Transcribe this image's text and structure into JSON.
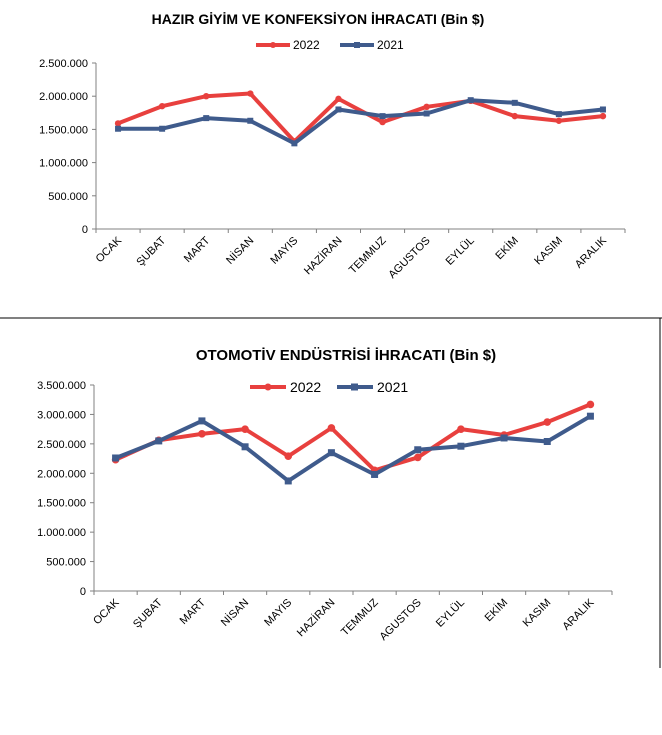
{
  "colors": {
    "series2022": "#e8403e",
    "series2021": "#3f5b8c",
    "axis": "#808080",
    "frame": "#000000"
  },
  "chart_data": [
    {
      "type": "line",
      "title": "HAZIR GİYİM VE KONFEKSİYON İHRACATI (Bin $)",
      "categories": [
        "OCAK",
        "ŞUBAT",
        "MART",
        "NİSAN",
        "MAYIS",
        "HAZİRAN",
        "TEMMUZ",
        "AGUSTOS",
        "EYLÜL",
        "EKİM",
        "KASIM",
        "ARALIK"
      ],
      "series": [
        {
          "name": "2022",
          "values": [
            1590000,
            1850000,
            2000000,
            2040000,
            1320000,
            1960000,
            1610000,
            1840000,
            1930000,
            1700000,
            1630000,
            1700000
          ]
        },
        {
          "name": "2021",
          "values": [
            1510000,
            1510000,
            1670000,
            1630000,
            1290000,
            1800000,
            1700000,
            1740000,
            1940000,
            1900000,
            1730000,
            1800000
          ]
        }
      ],
      "ylim": [
        0,
        2500000
      ],
      "yticks": [
        0,
        500000,
        1000000,
        1500000,
        2000000,
        2500000
      ],
      "ytick_labels": [
        "0",
        "500.000",
        "1.000.000",
        "1.500.000",
        "2.000.000",
        "2.500.000"
      ],
      "xlabel": "",
      "ylabel": "",
      "grid": false,
      "legend": "top-center"
    },
    {
      "type": "line",
      "title": "OTOMOTİV ENDÜSTRİSİ İHRACATI (Bin $)",
      "categories": [
        "OCAK",
        "ŞUBAT",
        "MART",
        "NİSAN",
        "MAYIS",
        "HAZİRAN",
        "TEMMUZ",
        "AGUSTOS",
        "EYLÜL",
        "EKİM",
        "KASIM",
        "ARALIK"
      ],
      "series": [
        {
          "name": "2022",
          "values": [
            2230000,
            2560000,
            2670000,
            2750000,
            2290000,
            2770000,
            2050000,
            2270000,
            2750000,
            2650000,
            2870000,
            3170000
          ]
        },
        {
          "name": "2021",
          "values": [
            2260000,
            2550000,
            2890000,
            2450000,
            1870000,
            2350000,
            1980000,
            2400000,
            2460000,
            2600000,
            2540000,
            2970000
          ]
        }
      ],
      "ylim": [
        0,
        3500000
      ],
      "yticks": [
        0,
        500000,
        1000000,
        1500000,
        2000000,
        2500000,
        3000000,
        3500000
      ],
      "ytick_labels": [
        "0",
        "500.000",
        "1.000.000",
        "1.500.000",
        "2.000.000",
        "2.500.000",
        "3.000.000",
        "3.500.000"
      ],
      "xlabel": "",
      "ylabel": "",
      "grid": false,
      "legend": "top-center"
    }
  ]
}
